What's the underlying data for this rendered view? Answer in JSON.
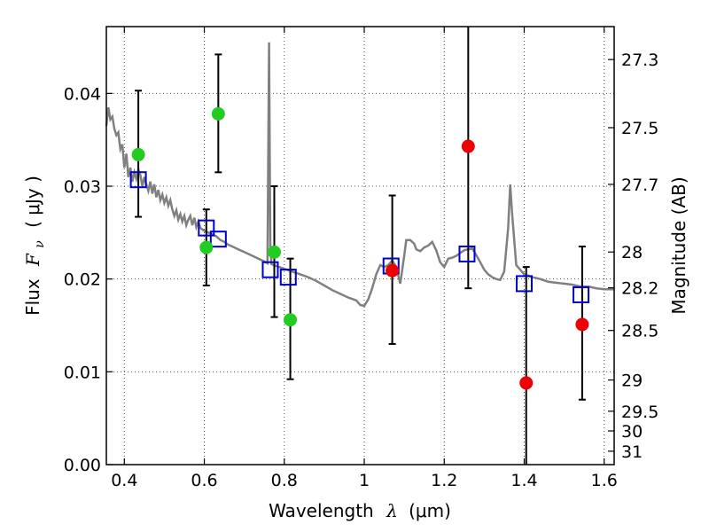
{
  "chart_data": {
    "type": "scatter",
    "xlabel": "Wavelength",
    "xlabel_symbol": "λ",
    "xlabel_unit": "(μm)",
    "ylabel": "Flux",
    "ylabel_symbol": "F",
    "ylabel_symbol_sub": "ν",
    "ylabel_unit": "( μJy )",
    "ylabel_right": "Magnitude (AB)",
    "xlim": [
      0.355,
      1.625
    ],
    "ylim": [
      0.0,
      0.0472
    ],
    "grid": true,
    "x_ticks": [
      {
        "value": 0.4,
        "label": "0.4"
      },
      {
        "value": 0.6,
        "label": "0.6"
      },
      {
        "value": 0.8,
        "label": "0.8"
      },
      {
        "value": 1.0,
        "label": "1"
      },
      {
        "value": 1.2,
        "label": "1.2"
      },
      {
        "value": 1.4,
        "label": "1.4"
      },
      {
        "value": 1.6,
        "label": "1.6"
      }
    ],
    "y_ticks": [
      {
        "value": 0.0,
        "label": "0.00"
      },
      {
        "value": 0.01,
        "label": "0.01"
      },
      {
        "value": 0.02,
        "label": "0.02"
      },
      {
        "value": 0.03,
        "label": "0.03"
      },
      {
        "value": 0.04,
        "label": "0.04"
      }
    ],
    "mag_ticks": [
      "27.3",
      "27.5",
      "27.7",
      "28",
      "28.2",
      "28.5",
      "29",
      "29.5",
      "30",
      "31"
    ],
    "sed_model": {
      "color": "#808080",
      "points": [
        [
          0.355,
          0.0365
        ],
        [
          0.36,
          0.0385
        ],
        [
          0.365,
          0.0372
        ],
        [
          0.37,
          0.0375
        ],
        [
          0.375,
          0.0362
        ],
        [
          0.38,
          0.0355
        ],
        [
          0.385,
          0.0358
        ],
        [
          0.39,
          0.034
        ],
        [
          0.395,
          0.0345
        ],
        [
          0.4,
          0.032
        ],
        [
          0.405,
          0.0335
        ],
        [
          0.41,
          0.031
        ],
        [
          0.415,
          0.032
        ],
        [
          0.42,
          0.0305
        ],
        [
          0.425,
          0.0315
        ],
        [
          0.43,
          0.0308
        ],
        [
          0.435,
          0.0318
        ],
        [
          0.44,
          0.0312
        ],
        [
          0.445,
          0.03
        ],
        [
          0.45,
          0.031
        ],
        [
          0.455,
          0.0302
        ],
        [
          0.46,
          0.0295
        ],
        [
          0.465,
          0.0305
        ],
        [
          0.47,
          0.0292
        ],
        [
          0.475,
          0.0302
        ],
        [
          0.48,
          0.0288
        ],
        [
          0.485,
          0.0296
        ],
        [
          0.49,
          0.0285
        ],
        [
          0.495,
          0.0291
        ],
        [
          0.5,
          0.0282
        ],
        [
          0.505,
          0.0288
        ],
        [
          0.51,
          0.0279
        ],
        [
          0.515,
          0.0285
        ],
        [
          0.52,
          0.0275
        ],
        [
          0.525,
          0.0268
        ],
        [
          0.53,
          0.0274
        ],
        [
          0.535,
          0.0264
        ],
        [
          0.54,
          0.027
        ],
        [
          0.545,
          0.0262
        ],
        [
          0.55,
          0.0268
        ],
        [
          0.555,
          0.0258
        ],
        [
          0.56,
          0.0264
        ],
        [
          0.565,
          0.0268
        ],
        [
          0.57,
          0.0258
        ],
        [
          0.575,
          0.0266
        ],
        [
          0.58,
          0.0256
        ],
        [
          0.585,
          0.0262
        ],
        [
          0.59,
          0.0255
        ],
        [
          0.6,
          0.0252
        ],
        [
          0.61,
          0.025
        ],
        [
          0.62,
          0.0248
        ],
        [
          0.63,
          0.0246
        ],
        [
          0.64,
          0.0242
        ],
        [
          0.65,
          0.024
        ],
        [
          0.66,
          0.0237
        ],
        [
          0.67,
          0.0235
        ],
        [
          0.68,
          0.0233
        ],
        [
          0.69,
          0.0231
        ],
        [
          0.7,
          0.0229
        ],
        [
          0.71,
          0.0227
        ],
        [
          0.72,
          0.0225
        ],
        [
          0.73,
          0.0223
        ],
        [
          0.74,
          0.0221
        ],
        [
          0.75,
          0.0219
        ],
        [
          0.758,
          0.0217
        ],
        [
          0.762,
          0.0455
        ],
        [
          0.765,
          0.0235
        ],
        [
          0.768,
          0.0216
        ],
        [
          0.78,
          0.0214
        ],
        [
          0.8,
          0.0211
        ],
        [
          0.82,
          0.0208
        ],
        [
          0.84,
          0.0205
        ],
        [
          0.86,
          0.0202
        ],
        [
          0.88,
          0.0198
        ],
        [
          0.9,
          0.0193
        ],
        [
          0.92,
          0.0188
        ],
        [
          0.94,
          0.0184
        ],
        [
          0.96,
          0.018
        ],
        [
          0.98,
          0.0177
        ],
        [
          0.99,
          0.0172
        ],
        [
          1.0,
          0.0171
        ],
        [
          1.01,
          0.0178
        ],
        [
          1.02,
          0.019
        ],
        [
          1.03,
          0.0205
        ],
        [
          1.04,
          0.0215
        ],
        [
          1.05,
          0.0213
        ],
        [
          1.06,
          0.0215
        ],
        [
          1.07,
          0.022
        ],
        [
          1.08,
          0.0213
        ],
        [
          1.09,
          0.0195
        ],
        [
          1.1,
          0.0225
        ],
        [
          1.105,
          0.0242
        ],
        [
          1.115,
          0.0242
        ],
        [
          1.125,
          0.0238
        ],
        [
          1.13,
          0.0232
        ],
        [
          1.14,
          0.023
        ],
        [
          1.15,
          0.0234
        ],
        [
          1.16,
          0.0236
        ],
        [
          1.17,
          0.024
        ],
        [
          1.18,
          0.0231
        ],
        [
          1.19,
          0.0218
        ],
        [
          1.2,
          0.0213
        ],
        [
          1.21,
          0.0222
        ],
        [
          1.22,
          0.0223
        ],
        [
          1.23,
          0.0225
        ],
        [
          1.24,
          0.0228
        ],
        [
          1.25,
          0.0231
        ],
        [
          1.26,
          0.0232
        ],
        [
          1.27,
          0.0233
        ],
        [
          1.28,
          0.0226
        ],
        [
          1.29,
          0.0218
        ],
        [
          1.3,
          0.021
        ],
        [
          1.31,
          0.0205
        ],
        [
          1.32,
          0.0202
        ],
        [
          1.33,
          0.02
        ],
        [
          1.34,
          0.0199
        ],
        [
          1.35,
          0.0208
        ],
        [
          1.36,
          0.0255
        ],
        [
          1.365,
          0.0302
        ],
        [
          1.37,
          0.027
        ],
        [
          1.38,
          0.0215
        ],
        [
          1.39,
          0.021
        ],
        [
          1.4,
          0.0205
        ],
        [
          1.42,
          0.0202
        ],
        [
          1.44,
          0.02
        ],
        [
          1.46,
          0.0197
        ],
        [
          1.48,
          0.0196
        ],
        [
          1.5,
          0.0195
        ],
        [
          1.52,
          0.0194
        ],
        [
          1.54,
          0.0192
        ],
        [
          1.56,
          0.0192
        ],
        [
          1.58,
          0.019
        ],
        [
          1.6,
          0.0189
        ],
        [
          1.625,
          0.0189
        ]
      ]
    },
    "model_photometry": {
      "marker": "open-square",
      "color": "#0000cc",
      "points": [
        [
          0.435,
          0.0307
        ],
        [
          0.605,
          0.0255
        ],
        [
          0.635,
          0.0243
        ],
        [
          0.765,
          0.021
        ],
        [
          0.81,
          0.0202
        ],
        [
          1.067,
          0.0214
        ],
        [
          1.257,
          0.0227
        ],
        [
          1.4,
          0.0195
        ],
        [
          1.542,
          0.0183
        ]
      ]
    },
    "observed": [
      {
        "x": 0.435,
        "y": 0.0334,
        "yerr_low": 0.0267,
        "yerr_high": 0.0403,
        "color": "#22cc22"
      },
      {
        "x": 0.605,
        "y": 0.0234,
        "yerr_low": 0.0193,
        "yerr_high": 0.0275,
        "color": "#22cc22"
      },
      {
        "x": 0.635,
        "y": 0.0378,
        "yerr_low": 0.0315,
        "yerr_high": 0.0442,
        "color": "#22cc22"
      },
      {
        "x": 0.775,
        "y": 0.0229,
        "yerr_low": 0.0159,
        "yerr_high": 0.03,
        "color": "#22cc22"
      },
      {
        "x": 0.815,
        "y": 0.0156,
        "yerr_low": 0.0092,
        "yerr_high": 0.0222,
        "color": "#22cc22"
      },
      {
        "x": 1.07,
        "y": 0.0209,
        "yerr_low": 0.013,
        "yerr_high": 0.029,
        "color": "#ee0000"
      },
      {
        "x": 1.26,
        "y": 0.0343,
        "yerr_low": 0.019,
        "yerr_high": 0.0475,
        "color": "#ee0000"
      },
      {
        "x": 1.405,
        "y": 0.0088,
        "yerr_low": 0.0,
        "yerr_high": 0.0213,
        "color": "#ee0000"
      },
      {
        "x": 1.545,
        "y": 0.0151,
        "yerr_low": 0.007,
        "yerr_high": 0.0235,
        "color": "#ee0000"
      }
    ]
  }
}
